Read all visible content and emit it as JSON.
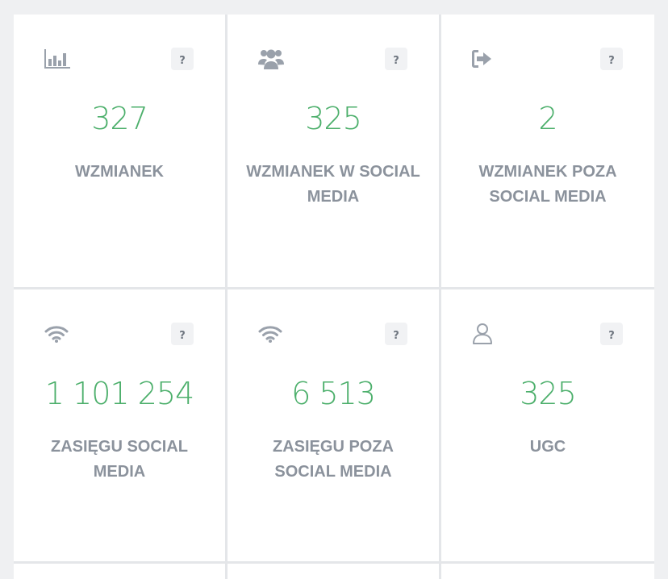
{
  "stats": [
    {
      "icon": "bar-chart-icon",
      "value": "327",
      "label": "WZMIANEK",
      "help": "?"
    },
    {
      "icon": "users-group-icon",
      "value": "325",
      "label": "WZMIANEK W SOCIAL MEDIA",
      "help": "?"
    },
    {
      "icon": "sign-out-icon",
      "value": "2",
      "label": "WZMIANEK POZA SOCIAL MEDIA",
      "help": "?"
    },
    {
      "icon": "wifi-icon",
      "value": "1 101 254",
      "label": "ZASIĘGU SOCIAL MEDIA",
      "help": "?"
    },
    {
      "icon": "wifi-icon",
      "value": "6 513",
      "label": "ZASIĘGU POZA SOCIAL MEDIA",
      "help": "?"
    },
    {
      "icon": "user-outline-icon",
      "value": "325",
      "label": "UGC",
      "help": "?"
    }
  ],
  "colors": {
    "value": "#4caf6b",
    "label": "#8b929c",
    "icon": "#9aa1ab",
    "background": "#eff0f2"
  }
}
